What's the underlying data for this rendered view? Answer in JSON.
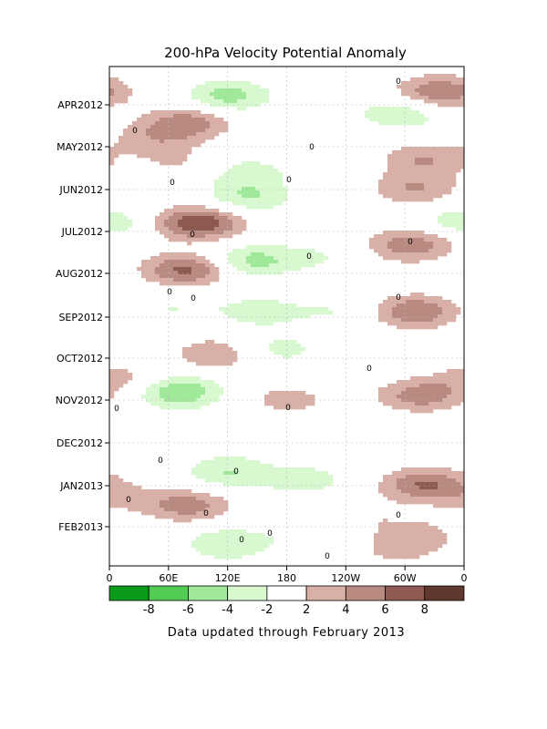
{
  "chart_data": {
    "type": "heatmap",
    "title": "200-hPa Velocity Potential Anomaly",
    "footer": "Data updated through February 2013",
    "x_ticks": [
      "0",
      "60E",
      "120E",
      "180",
      "120W",
      "60W",
      "0"
    ],
    "y_ticks": [
      "APR2012",
      "MAY2012",
      "JUN2012",
      "JUL2012",
      "AUG2012",
      "SEP2012",
      "OCT2012",
      "NOV2012",
      "DEC2012",
      "JAN2013",
      "FEB2013"
    ],
    "colorbar": {
      "labels": [
        "-8",
        "-6",
        "-4",
        "-2",
        "2",
        "4",
        "6",
        "8"
      ],
      "colors": [
        "#0c9a1a",
        "#52cc52",
        "#a0e89a",
        "#d8f8d0",
        "#ffffff",
        "#d8b0a8",
        "#b88a80",
        "#8c5a50",
        "#603830"
      ]
    },
    "contour_label": "0",
    "anomalies": [
      {
        "lon": 80,
        "month": 0.4,
        "value": 5
      },
      {
        "lon": 45,
        "month": 0.8,
        "value": 3
      },
      {
        "lon": 120,
        "month": -0.2,
        "value": -5
      },
      {
        "lon": 210,
        "month": 0.7,
        "value": 2
      },
      {
        "lon": 295,
        "month": 0.2,
        "value": -4
      },
      {
        "lon": 335,
        "month": -0.3,
        "value": 6
      },
      {
        "lon": 70,
        "month": 1.4,
        "value": 2
      },
      {
        "lon": 140,
        "month": 1.6,
        "value": -3
      },
      {
        "lon": 320,
        "month": 1.3,
        "value": 4
      },
      {
        "lon": 140,
        "month": 2.2,
        "value": -4
      },
      {
        "lon": 310,
        "month": 2.0,
        "value": 4
      },
      {
        "lon": 5,
        "month": 2.8,
        "value": -2
      },
      {
        "lon": 90,
        "month": 2.8,
        "value": 8
      },
      {
        "lon": 315,
        "month": 3.2,
        "value": 3
      },
      {
        "lon": 350,
        "month": 2.8,
        "value": -2
      },
      {
        "lon": 80,
        "month": 3.9,
        "value": 7
      },
      {
        "lon": 140,
        "month": 3.7,
        "value": -5
      },
      {
        "lon": 210,
        "month": 3.6,
        "value": -2
      },
      {
        "lon": 300,
        "month": 3.4,
        "value": 3
      },
      {
        "lon": 60,
        "month": 4.8,
        "value": -2
      },
      {
        "lon": 150,
        "month": 4.9,
        "value": -3
      },
      {
        "lon": 230,
        "month": 4.9,
        "value": -2
      },
      {
        "lon": 310,
        "month": 4.9,
        "value": 6
      },
      {
        "lon": 110,
        "month": 5.9,
        "value": 4
      },
      {
        "lon": 170,
        "month": 5.8,
        "value": -3
      },
      {
        "lon": 10,
        "month": 6.5,
        "value": 3
      },
      {
        "lon": 70,
        "month": 6.8,
        "value": -6
      },
      {
        "lon": 180,
        "month": 7.0,
        "value": 3
      },
      {
        "lon": 315,
        "month": 6.9,
        "value": 5
      },
      {
        "lon": 140,
        "month": 7.7,
        "value": -2
      },
      {
        "lon": 260,
        "month": 7.8,
        "value": -2
      },
      {
        "lon": 120,
        "month": 8.7,
        "value": -4
      },
      {
        "lon": 200,
        "month": 8.9,
        "value": -3
      },
      {
        "lon": 320,
        "month": 9.0,
        "value": 6
      },
      {
        "lon": 80,
        "month": 9.5,
        "value": 5
      },
      {
        "lon": 10,
        "month": 9.3,
        "value": 2
      },
      {
        "lon": 250,
        "month": 9.7,
        "value": 2
      },
      {
        "lon": 120,
        "month": 10.4,
        "value": -4
      },
      {
        "lon": 210,
        "month": 10.2,
        "value": -2
      },
      {
        "lon": 310,
        "month": 10.2,
        "value": 3
      },
      {
        "lon": 290,
        "month": 10.6,
        "value": 2
      }
    ]
  }
}
